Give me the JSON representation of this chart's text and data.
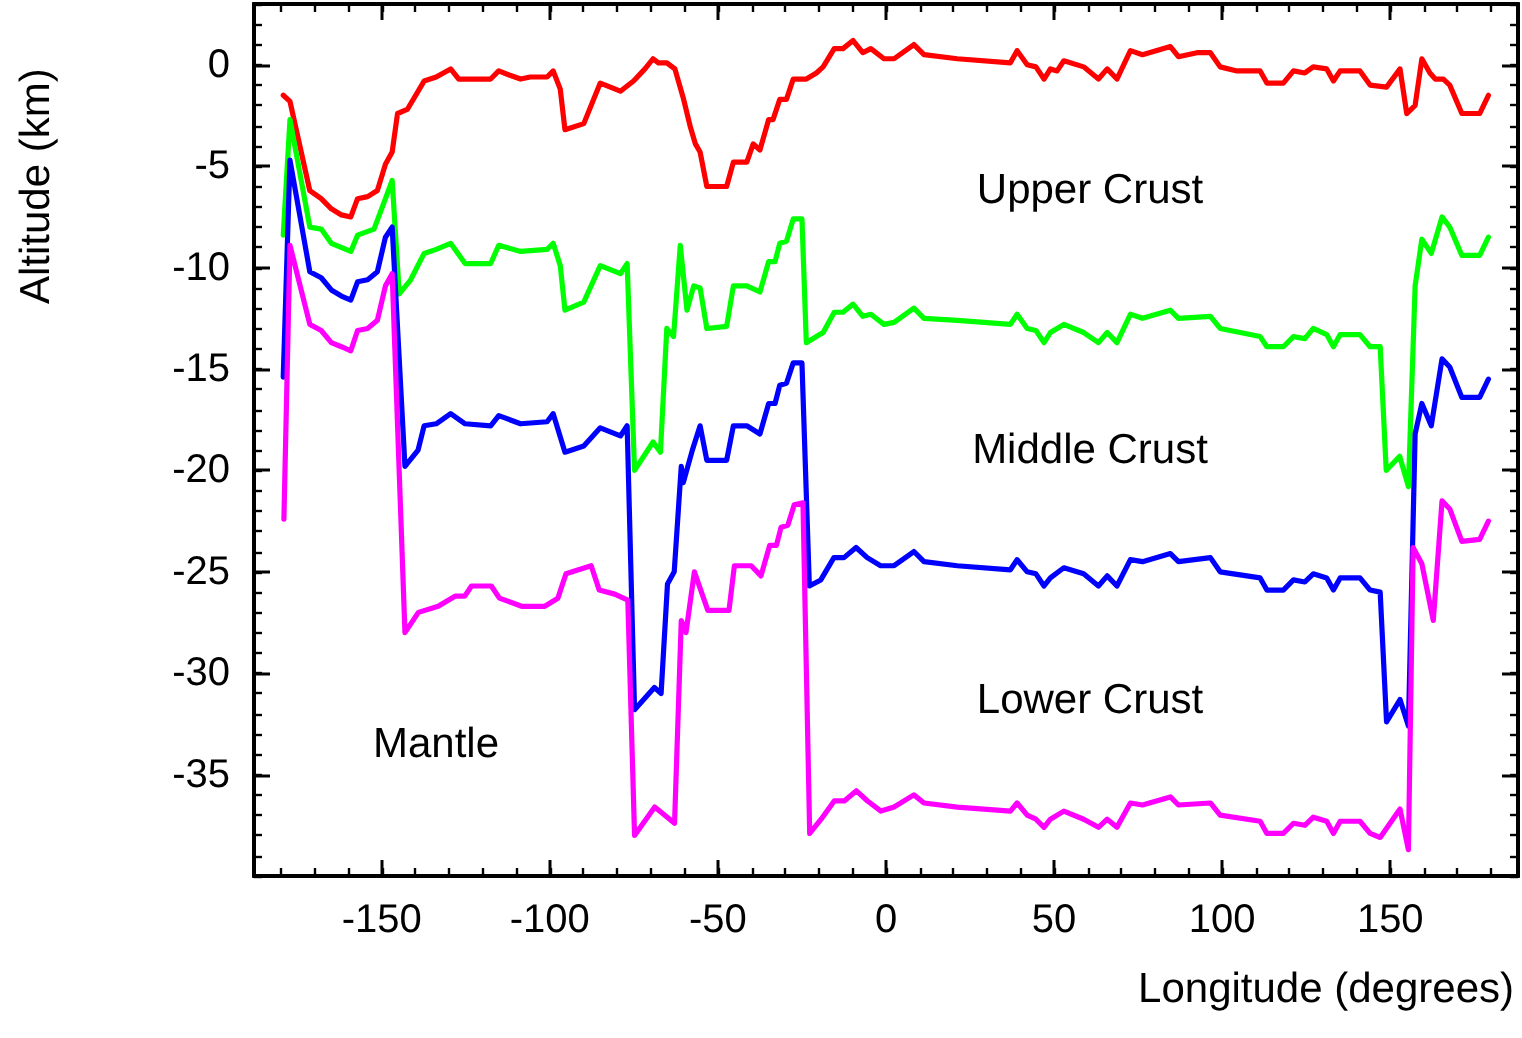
{
  "chart_data": {
    "type": "line",
    "xlabel": "Longitude (degrees)",
    "ylabel": "Altitude (km)",
    "xlim": [
      -188,
      188
    ],
    "xticks": [
      -150,
      -100,
      -50,
      0,
      50,
      100,
      150
    ],
    "ylim": [
      -40,
      3
    ],
    "yticks": [
      0,
      -5,
      -10,
      -15,
      -20,
      -25,
      -30,
      -35
    ],
    "grid": false,
    "marker": "none",
    "line_style": "solid",
    "annotations": [
      "Upper Crust",
      "Middle Crust",
      "Lower Crust",
      "Mantle"
    ],
    "series": [
      {
        "color": "#ff0000",
        "x": [
          -179.3,
          -177.3,
          -171.4,
          -168,
          -165,
          -162,
          -159.2,
          -157.2,
          -154.2,
          -151.3,
          -148.9,
          -146.9,
          -145.3,
          -142.4,
          -137.4,
          -133.8,
          -129.5,
          -127.1,
          -117.6,
          -115.2,
          -112.1,
          -108.7,
          -105.8,
          -100.8,
          -99,
          -96.9,
          -95.5,
          -89.9,
          -85,
          -79,
          -75.1,
          -71.7,
          -69.3,
          -67.7,
          -65.2,
          -62.8,
          -60.2,
          -58.3,
          -56.7,
          -55.3,
          -53.3,
          -47.4,
          -45.4,
          -41.4,
          -39.5,
          -37.5,
          -34.9,
          -33.6,
          -31.6,
          -29.6,
          -27.6,
          -23.7,
          -20.7,
          -18.7,
          -15.4,
          -12.8,
          -9.8,
          -6.9,
          -4.5,
          -0.6,
          2.4,
          8.3,
          11.3,
          21.2,
          37,
          39,
          42,
          44.6,
          47,
          48.9,
          50.9,
          52.9,
          58.8,
          63.2,
          65.8,
          68.7,
          72.7,
          76.3,
          84.6,
          87,
          92.5,
          96.5,
          99.4,
          104.4,
          111.3,
          113.3,
          118.2,
          121.2,
          124.6,
          127.1,
          131.1,
          133.1,
          135.1,
          141,
          144,
          148.9,
          152.9,
          154.9,
          157.4,
          159.4,
          161.8,
          163.4,
          165.8,
          167.7,
          171.3,
          176.6,
          179.2
        ],
        "values": [
          -1.5,
          -1.8,
          -6.2,
          -6.6,
          -7.1,
          -7.4,
          -7.5,
          -6.6,
          -6.5,
          -6.2,
          -4.9,
          -4.3,
          -2.4,
          -2.2,
          -0.8,
          -0.6,
          -0.2,
          -0.7,
          -0.7,
          -0.3,
          -0.5,
          -0.7,
          -0.6,
          -0.6,
          -0.3,
          -1.2,
          -3.2,
          -2.9,
          -0.9,
          -1.3,
          -0.8,
          -0.2,
          0.3,
          0.1,
          0.1,
          -0.2,
          -1.7,
          -3,
          -3.9,
          -4.3,
          -6,
          -6,
          -4.8,
          -4.8,
          -3.9,
          -4.2,
          -2.7,
          -2.7,
          -1.7,
          -1.7,
          -0.7,
          -0.7,
          -0.4,
          -0.1,
          0.8,
          0.8,
          1.2,
          0.6,
          0.8,
          0.3,
          0.3,
          1,
          0.5,
          0.3,
          0.1,
          0.7,
          0,
          -0.1,
          -0.7,
          -0.2,
          -0.3,
          0.2,
          -0.1,
          -0.7,
          -0.2,
          -0.7,
          0.7,
          0.5,
          0.9,
          0.4,
          0.6,
          0.6,
          -0.1,
          -0.3,
          -0.3,
          -0.9,
          -0.9,
          -0.3,
          -0.4,
          -0.1,
          -0.2,
          -0.8,
          -0.3,
          -0.3,
          -1,
          -1.1,
          -0.2,
          -2.4,
          -2,
          0.3,
          -0.4,
          -0.7,
          -0.7,
          -1,
          -2.4,
          -2.4,
          -1.5
        ]
      },
      {
        "color": "#00ff00",
        "x": [
          -179.3,
          -177.3,
          -171.4,
          -168,
          -165,
          -159.2,
          -157.2,
          -152.3,
          -148.9,
          -146.9,
          -144.8,
          -141.4,
          -137.4,
          -133.8,
          -129.5,
          -125.2,
          -117.6,
          -115.2,
          -108.7,
          -100.8,
          -99,
          -96.9,
          -95.5,
          -89.9,
          -85,
          -79,
          -77,
          -74.8,
          -69.3,
          -67.1,
          -65.2,
          -63.2,
          -61.2,
          -59.2,
          -57.2,
          -55.3,
          -53.3,
          -47.4,
          -45.4,
          -41.4,
          -37.5,
          -34.9,
          -33,
          -31.6,
          -29.6,
          -27.6,
          -25,
          -23.7,
          -20.7,
          -18.7,
          -15.4,
          -12.8,
          -9.8,
          -6.9,
          -4.5,
          -0.6,
          2.4,
          8.3,
          11.3,
          21.2,
          37,
          39,
          42,
          44.6,
          47,
          48.9,
          52.9,
          58.8,
          63.2,
          65.8,
          68.7,
          72.7,
          76.3,
          84.6,
          87,
          96.5,
          99.4,
          111.3,
          113.3,
          118.2,
          121.2,
          124.6,
          127.1,
          131.1,
          133.1,
          135.1,
          141,
          144,
          147,
          148.8,
          152.8,
          155.4,
          157.4,
          159.4,
          162.2,
          165.4,
          167.7,
          171.3,
          176.6,
          179.2
        ],
        "values": [
          -8.4,
          -2.7,
          -8,
          -8.1,
          -8.8,
          -9.2,
          -8.4,
          -8.1,
          -6.6,
          -5.7,
          -11.3,
          -10.6,
          -9.3,
          -9.1,
          -8.8,
          -9.8,
          -9.8,
          -8.9,
          -9.2,
          -9.1,
          -8.8,
          -9.9,
          -12.1,
          -11.7,
          -9.9,
          -10.3,
          -9.8,
          -20,
          -18.6,
          -19.1,
          -13,
          -13.4,
          -8.9,
          -12.1,
          -10.9,
          -11,
          -13,
          -12.9,
          -10.9,
          -10.9,
          -11.2,
          -9.7,
          -9.7,
          -8.8,
          -8.7,
          -7.6,
          -7.6,
          -13.7,
          -13.4,
          -13.2,
          -12.2,
          -12.2,
          -11.8,
          -12.4,
          -12.3,
          -12.8,
          -12.7,
          -12,
          -12.5,
          -12.6,
          -12.8,
          -12.3,
          -13,
          -13.1,
          -13.7,
          -13.2,
          -12.8,
          -13.2,
          -13.7,
          -13.2,
          -13.7,
          -12.3,
          -12.5,
          -12.1,
          -12.5,
          -12.4,
          -13,
          -13.4,
          -13.9,
          -13.9,
          -13.4,
          -13.5,
          -13,
          -13.3,
          -13.9,
          -13.3,
          -13.3,
          -13.9,
          -13.9,
          -20,
          -19.3,
          -20.8,
          -10.9,
          -8.6,
          -9.3,
          -7.5,
          -8,
          -9.4,
          -9.4,
          -8.5
        ]
      },
      {
        "color": "#0000ff",
        "x": [
          -179.3,
          -177.3,
          -171.4,
          -168,
          -165,
          -162,
          -159.2,
          -157.2,
          -154.2,
          -151.3,
          -148.9,
          -146.9,
          -143.1,
          -139.2,
          -137.4,
          -133.8,
          -129.5,
          -125.2,
          -117.6,
          -115.2,
          -108.7,
          -100.8,
          -99,
          -95.5,
          -89.9,
          -85,
          -79,
          -77,
          -74.8,
          -68.9,
          -66.9,
          -65,
          -63,
          -60.9,
          -60.3,
          -57.6,
          -55.3,
          -53.3,
          -47.4,
          -45.4,
          -41.4,
          -37.5,
          -34.9,
          -33,
          -31.6,
          -29.6,
          -27.6,
          -25,
          -22.8,
          -19.4,
          -15.5,
          -12.5,
          -8.9,
          -5.6,
          -1.6,
          2.4,
          8.3,
          11.3,
          21.2,
          37,
          39,
          42,
          44.6,
          47,
          48.9,
          52.9,
          58.8,
          63.2,
          65.8,
          68.7,
          72.7,
          76.3,
          84.6,
          87,
          96.5,
          99.4,
          111.3,
          113.3,
          118.2,
          121.2,
          124.6,
          127.1,
          131.1,
          133.1,
          135.1,
          141,
          144,
          147,
          148.9,
          152.9,
          155.4,
          157.4,
          159.4,
          162.2,
          165.4,
          167.7,
          171.3,
          176.6,
          179.2
        ],
        "values": [
          -15.4,
          -4.7,
          -10.2,
          -10.5,
          -11.1,
          -11.4,
          -11.6,
          -10.7,
          -10.6,
          -10.2,
          -8.5,
          -8,
          -19.8,
          -19,
          -17.8,
          -17.7,
          -17.2,
          -17.7,
          -17.8,
          -17.3,
          -17.7,
          -17.6,
          -17.2,
          -19.1,
          -18.8,
          -17.9,
          -18.3,
          -17.8,
          -31.8,
          -30.7,
          -31,
          -25.6,
          -25,
          -19.8,
          -20.6,
          -19,
          -17.8,
          -19.5,
          -19.5,
          -17.8,
          -17.8,
          -18.2,
          -16.7,
          -16.7,
          -15.8,
          -15.7,
          -14.7,
          -14.7,
          -25.7,
          -25.4,
          -24.3,
          -24.3,
          -23.8,
          -24.3,
          -24.7,
          -24.7,
          -24,
          -24.5,
          -24.7,
          -24.9,
          -24.4,
          -25,
          -25.1,
          -25.7,
          -25.3,
          -24.8,
          -25.1,
          -25.7,
          -25.2,
          -25.7,
          -24.4,
          -24.5,
          -24.1,
          -24.5,
          -24.3,
          -25,
          -25.3,
          -25.9,
          -25.9,
          -25.4,
          -25.5,
          -25.1,
          -25.3,
          -25.9,
          -25.3,
          -25.3,
          -25.9,
          -26,
          -32.4,
          -31.3,
          -32.6,
          -18.2,
          -16.7,
          -17.8,
          -14.5,
          -14.9,
          -16.4,
          -16.4,
          -15.5
        ]
      },
      {
        "color": "#ff00ff",
        "x": [
          -179.1,
          -177.3,
          -171.4,
          -168,
          -165,
          -162,
          -159.2,
          -157.2,
          -154.2,
          -151.3,
          -148.9,
          -146.9,
          -143.1,
          -139.1,
          -133.2,
          -128.2,
          -125.3,
          -123.3,
          -117.4,
          -115,
          -108.4,
          -101.5,
          -97.6,
          -95.2,
          -87.7,
          -85.3,
          -80.7,
          -76.8,
          -74.8,
          -68.8,
          -62.9,
          -60.9,
          -59.5,
          -57,
          -53,
          -46.7,
          -45.1,
          -40.1,
          -37.2,
          -34.6,
          -32.6,
          -31.2,
          -29.2,
          -27.3,
          -24.7,
          -22.7,
          -19.3,
          -15.4,
          -12.4,
          -8.8,
          -5.5,
          -1.5,
          2.4,
          8.3,
          11.3,
          21.2,
          37,
          39,
          42,
          44.6,
          47,
          48.9,
          52.9,
          58.8,
          63.2,
          65.8,
          68.7,
          72.7,
          76.3,
          84.6,
          87,
          96.5,
          99.4,
          111.3,
          113.3,
          118.2,
          121.2,
          124.6,
          127.1,
          131.1,
          133.1,
          135.1,
          141,
          144,
          147,
          152.9,
          155.4,
          156.8,
          159.4,
          162.8,
          165.4,
          167.7,
          171.3,
          176.6,
          179.2
        ],
        "values": [
          -22.4,
          -8.9,
          -12.8,
          -13.1,
          -13.7,
          -13.9,
          -14.1,
          -13.1,
          -13,
          -12.6,
          -10.9,
          -10.3,
          -28,
          -27,
          -26.7,
          -26.2,
          -26.2,
          -25.7,
          -25.7,
          -26.3,
          -26.7,
          -26.7,
          -26.3,
          -25.1,
          -24.7,
          -25.9,
          -26.1,
          -26.4,
          -38,
          -36.6,
          -37.4,
          -27.4,
          -28,
          -25,
          -26.9,
          -26.9,
          -24.7,
          -24.7,
          -25.2,
          -23.7,
          -23.7,
          -22.8,
          -22.7,
          -21.7,
          -21.6,
          -37.9,
          -37.2,
          -36.3,
          -36.3,
          -35.8,
          -36.3,
          -36.8,
          -36.6,
          -36,
          -36.4,
          -36.6,
          -36.8,
          -36.4,
          -37,
          -37.2,
          -37.6,
          -37.2,
          -36.8,
          -37.2,
          -37.6,
          -37.2,
          -37.6,
          -36.4,
          -36.5,
          -36.1,
          -36.5,
          -36.4,
          -37,
          -37.3,
          -37.9,
          -37.9,
          -37.4,
          -37.5,
          -37.1,
          -37.3,
          -37.9,
          -37.3,
          -37.3,
          -37.9,
          -38.1,
          -36.7,
          -38.7,
          -23.8,
          -24.6,
          -27.4,
          -21.5,
          -21.9,
          -23.5,
          -23.4,
          -22.5
        ]
      }
    ]
  }
}
